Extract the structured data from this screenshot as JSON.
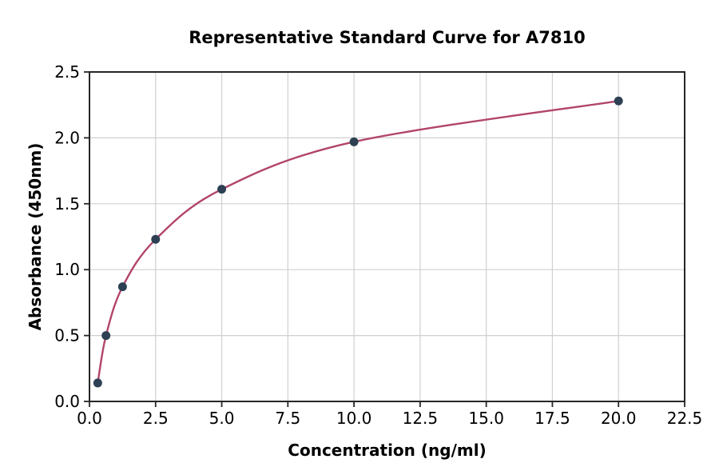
{
  "chart_data": {
    "type": "scatter",
    "title": "Representative Standard Curve for A7810",
    "xlabel": "Concentration (ng/ml)",
    "ylabel": "Absorbance (450nm)",
    "x": [
      0.3125,
      0.625,
      1.25,
      2.5,
      5,
      10,
      20
    ],
    "y": [
      0.14,
      0.5,
      0.87,
      1.23,
      1.61,
      1.97,
      2.28
    ],
    "fit_line": "smooth saturation curve through all points, from first point to last point",
    "xlim": [
      0,
      22.5
    ],
    "ylim": [
      0,
      2.5
    ],
    "xtick_labels": [
      "0.0",
      "2.5",
      "5.0",
      "7.5",
      "10.0",
      "12.5",
      "15.0",
      "17.5",
      "20.0",
      "22.5"
    ],
    "ytick_labels": [
      "0.0",
      "0.5",
      "1.0",
      "1.5",
      "2.0",
      "2.5"
    ],
    "grid": true,
    "legend": false,
    "colors": {
      "line": "#b2456a",
      "marker": "#2e4053",
      "grid": "#d0d0d0",
      "spine": "#262626",
      "text": "#000000",
      "background": "#ffffff"
    }
  }
}
